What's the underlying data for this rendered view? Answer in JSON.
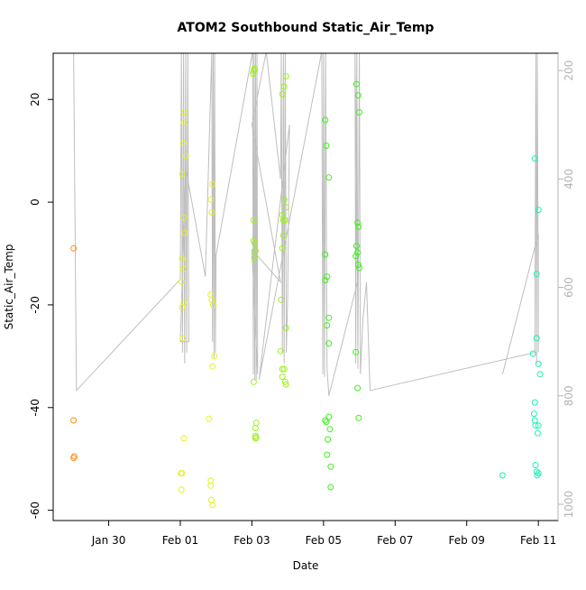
{
  "chart_data": {
    "type": "scatter",
    "title": "ATOM2 Southbound Static_Air_Temp",
    "xlabel": "Date",
    "ylabel": "Static_Air_Temp",
    "x_tick_labels": [
      "Jan 30",
      "Feb 01",
      "Feb 03",
      "Feb 05",
      "Feb 07",
      "Feb 09",
      "Feb 11"
    ],
    "x_ticks_days": [
      30,
      32,
      34,
      36,
      38,
      40,
      42
    ],
    "xlim_days": [
      28.45,
      42.55
    ],
    "y_ticks": [
      -60,
      -40,
      -20,
      0,
      20
    ],
    "ylim": [
      -62,
      29
    ],
    "y2_ticks": [
      200,
      400,
      600,
      800,
      1000
    ],
    "y2lim": [
      1030,
      168
    ],
    "y2_reversed": true,
    "pressure_line_color": "#bebebe",
    "point_colors_by_date": "orange-yellow-green-cyan",
    "series": [
      {
        "color": "#ff8c1a",
        "points": [
          [
            29.02,
            -9
          ],
          [
            29.02,
            -42.5
          ],
          [
            29.04,
            -49.5
          ],
          [
            29.02,
            -49.8
          ]
        ]
      },
      {
        "color": "#e6f21a",
        "points": [
          [
            32.05,
            5.5
          ],
          [
            32.08,
            11.5
          ],
          [
            32.1,
            15.5
          ],
          [
            32.12,
            17.5
          ],
          [
            32.15,
            9
          ],
          [
            32.1,
            -3
          ],
          [
            32.12,
            -6
          ],
          [
            32.05,
            -11
          ],
          [
            32.08,
            -13
          ],
          [
            32.03,
            -15.5
          ],
          [
            32.1,
            -19.5
          ],
          [
            32.05,
            -20.5
          ],
          [
            32.07,
            -26.5
          ],
          [
            32.1,
            -46
          ],
          [
            32.02,
            -52.8
          ],
          [
            32.05,
            -52.8
          ],
          [
            32.03,
            -56
          ],
          [
            32.9,
            3.5
          ],
          [
            32.85,
            0.5
          ],
          [
            32.88,
            -2
          ],
          [
            32.85,
            -18
          ],
          [
            32.88,
            -19
          ],
          [
            32.92,
            -20
          ],
          [
            32.95,
            -30
          ],
          [
            32.9,
            -32
          ],
          [
            32.8,
            -42.2
          ],
          [
            32.85,
            -54.2
          ],
          [
            32.85,
            -55.2
          ],
          [
            32.87,
            -58
          ],
          [
            32.9,
            -59
          ]
        ]
      },
      {
        "color": "#9bf21a",
        "points": [
          [
            34.05,
            25.5
          ],
          [
            34.07,
            26
          ],
          [
            34.08,
            25.8
          ],
          [
            34.03,
            25
          ],
          [
            34.05,
            -3.5
          ],
          [
            34.05,
            -7.5
          ],
          [
            34.08,
            -8
          ],
          [
            34.1,
            -9.5
          ],
          [
            34.07,
            -10.8
          ],
          [
            34.05,
            -35
          ],
          [
            34.12,
            -43
          ],
          [
            34.1,
            -44
          ],
          [
            34.1,
            -45.5
          ],
          [
            34.1,
            -46
          ],
          [
            34.12,
            -45.8
          ],
          [
            34.85,
            21
          ],
          [
            34.9,
            22.5
          ],
          [
            34.95,
            24.5
          ],
          [
            34.9,
            0.5
          ],
          [
            34.95,
            -1
          ],
          [
            34.85,
            -2.5
          ],
          [
            34.88,
            -3.5
          ],
          [
            34.92,
            -3.5
          ],
          [
            34.88,
            -6.5
          ],
          [
            34.85,
            -9
          ],
          [
            34.95,
            -24.5
          ],
          [
            34.8,
            -29
          ],
          [
            34.85,
            -32.5
          ],
          [
            34.9,
            -32.5
          ],
          [
            34.82,
            -19
          ],
          [
            34.85,
            -34
          ],
          [
            34.93,
            -35
          ],
          [
            34.95,
            -35.5
          ]
        ]
      },
      {
        "color": "#3cf21a",
        "points": [
          [
            36.05,
            16
          ],
          [
            36.08,
            11
          ],
          [
            36.15,
            4.8
          ],
          [
            36.05,
            -10.2
          ],
          [
            36.1,
            -14.5
          ],
          [
            36.05,
            -15.2
          ],
          [
            36.15,
            -22.5
          ],
          [
            36.1,
            -24
          ],
          [
            36.15,
            -27.5
          ],
          [
            36.05,
            -42.5
          ],
          [
            36.08,
            -42.8
          ],
          [
            36.15,
            -41.8
          ],
          [
            36.18,
            -44.2
          ],
          [
            36.12,
            -46.2
          ],
          [
            36.1,
            -49.2
          ],
          [
            36.2,
            -51.5
          ],
          [
            36.2,
            -55.5
          ],
          [
            36.92,
            23
          ],
          [
            36.97,
            20.8
          ],
          [
            37.0,
            17.5
          ],
          [
            36.95,
            -4
          ],
          [
            36.98,
            -4.8
          ],
          [
            36.92,
            -8.5
          ],
          [
            36.95,
            -9.8
          ],
          [
            36.9,
            -10.5
          ],
          [
            36.97,
            -12.2
          ],
          [
            37.0,
            -12.8
          ],
          [
            36.9,
            -29.2
          ],
          [
            36.95,
            -36.2
          ],
          [
            36.98,
            -42
          ]
        ]
      },
      {
        "color": "#1af2b4",
        "points": [
          [
            41.0,
            -53.2
          ],
          [
            41.9,
            8.5
          ],
          [
            41.95,
            -14
          ],
          [
            42.0,
            -1.5
          ],
          [
            41.95,
            -26.5
          ],
          [
            41.85,
            -29.5
          ],
          [
            42.0,
            -31.5
          ],
          [
            42.05,
            -33.5
          ],
          [
            41.9,
            -39
          ],
          [
            41.88,
            -41.2
          ],
          [
            41.9,
            -42.5
          ],
          [
            41.92,
            -43.5
          ],
          [
            42.0,
            -43.5
          ],
          [
            41.98,
            -45
          ],
          [
            41.92,
            -51.2
          ],
          [
            41.95,
            -52.5
          ],
          [
            42.0,
            -52.8
          ],
          [
            41.97,
            -53.2
          ]
        ]
      }
    ],
    "pressure_profile": {
      "color": "#bebebe",
      "pressure_hpa": [
        [
          29.02,
          160
        ],
        [
          29.1,
          790
        ],
        [
          32.0,
          585
        ],
        [
          32.03,
          165
        ],
        [
          32.06,
          720
        ],
        [
          32.09,
          165
        ],
        [
          32.12,
          740
        ],
        [
          32.15,
          165
        ],
        [
          32.18,
          720
        ],
        [
          32.21,
          165
        ],
        [
          32.24,
          700
        ],
        [
          32.0,
          700
        ],
        [
          32.15,
          380
        ],
        [
          32.7,
          580
        ],
        [
          32.88,
          165
        ],
        [
          32.9,
          700
        ],
        [
          32.92,
          165
        ],
        [
          32.94,
          730
        ],
        [
          32.96,
          165
        ],
        [
          32.98,
          720
        ],
        [
          33.0,
          540
        ],
        [
          34.02,
          165
        ],
        [
          34.04,
          760
        ],
        [
          34.06,
          165
        ],
        [
          34.08,
          770
        ],
        [
          34.1,
          165
        ],
        [
          34.12,
          770
        ],
        [
          34.14,
          165
        ],
        [
          34.16,
          760
        ],
        [
          34.0,
          530
        ],
        [
          34.8,
          590
        ],
        [
          34.0,
          300
        ],
        [
          34.4,
          165
        ],
        [
          34.8,
          400
        ],
        [
          34.82,
          165
        ],
        [
          34.85,
          720
        ],
        [
          34.88,
          165
        ],
        [
          34.9,
          740
        ],
        [
          34.93,
          165
        ],
        [
          34.96,
          720
        ],
        [
          35.0,
          620
        ],
        [
          35.05,
          300
        ],
        [
          34.2,
          770
        ],
        [
          35.95,
          165
        ],
        [
          35.98,
          760
        ],
        [
          36.0,
          165
        ],
        [
          36.03,
          765
        ],
        [
          36.06,
          165
        ],
        [
          36.1,
          750
        ],
        [
          36.15,
          800
        ],
        [
          36.95,
          590
        ],
        [
          36.88,
          165
        ],
        [
          36.9,
          740
        ],
        [
          36.93,
          165
        ],
        [
          36.96,
          750
        ],
        [
          37.0,
          165
        ],
        [
          37.03,
          760
        ],
        [
          37.1,
          660
        ],
        [
          37.2,
          590
        ],
        [
          37.3,
          790
        ],
        [
          41.9,
          720
        ],
        [
          41.93,
          165
        ],
        [
          41.95,
          740
        ],
        [
          41.97,
          165
        ],
        [
          42.0,
          720
        ],
        [
          42.0,
          500
        ],
        [
          41.0,
          760
        ]
      ]
    }
  }
}
